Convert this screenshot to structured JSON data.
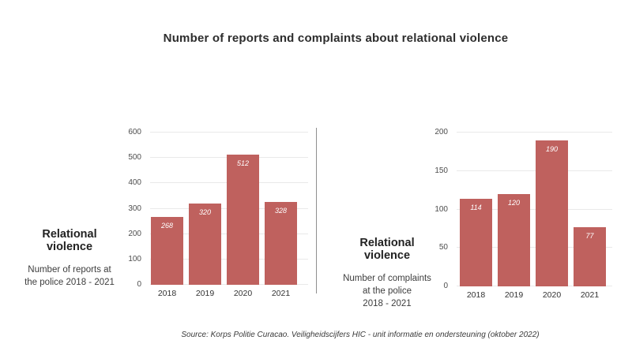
{
  "title": "Number of reports and complaints about relational violence",
  "source": "Source: Korps Politie Curacao. Veiligheidscijfers HIC - unit informatie en ondersteuning (oktober 2022)",
  "colors": {
    "bar": "#bf615e",
    "gridline": "#e9e9e9",
    "divider": "#8f8f8f",
    "title_text": "#2d2d2d",
    "axis_text": "#4d4d4d",
    "value_label": "#ffffff"
  },
  "chart_data": [
    {
      "type": "bar",
      "title": "Relational violence",
      "title_lines": [
        "Relational",
        "violence"
      ],
      "subtitle": "Number of reports at the police 2018 - 2021",
      "subtitle_lines": [
        "Number of reports at",
        "the police 2018 - 2021"
      ],
      "categories": [
        "2018",
        "2019",
        "2020",
        "2021"
      ],
      "values": [
        268,
        320,
        512,
        328
      ],
      "ylim": [
        0,
        600
      ],
      "yticks": [
        0,
        100,
        200,
        300,
        400,
        500,
        600
      ],
      "bar_color": "#bf615e",
      "grid": true,
      "value_labels": true,
      "legend": "none"
    },
    {
      "type": "bar",
      "title": "Relational violence",
      "title_lines": [
        "Relational",
        "violence"
      ],
      "subtitle": "Number of complaints at the police 2018 - 2021",
      "subtitle_lines": [
        "Number of complaints",
        "at the police",
        "2018 - 2021"
      ],
      "categories": [
        "2018",
        "2019",
        "2020",
        "2021"
      ],
      "values": [
        114,
        120,
        190,
        77
      ],
      "ylim": [
        0,
        200
      ],
      "yticks": [
        0,
        50,
        100,
        150,
        200
      ],
      "bar_color": "#bf615e",
      "grid": true,
      "value_labels": true,
      "legend": "none"
    }
  ]
}
